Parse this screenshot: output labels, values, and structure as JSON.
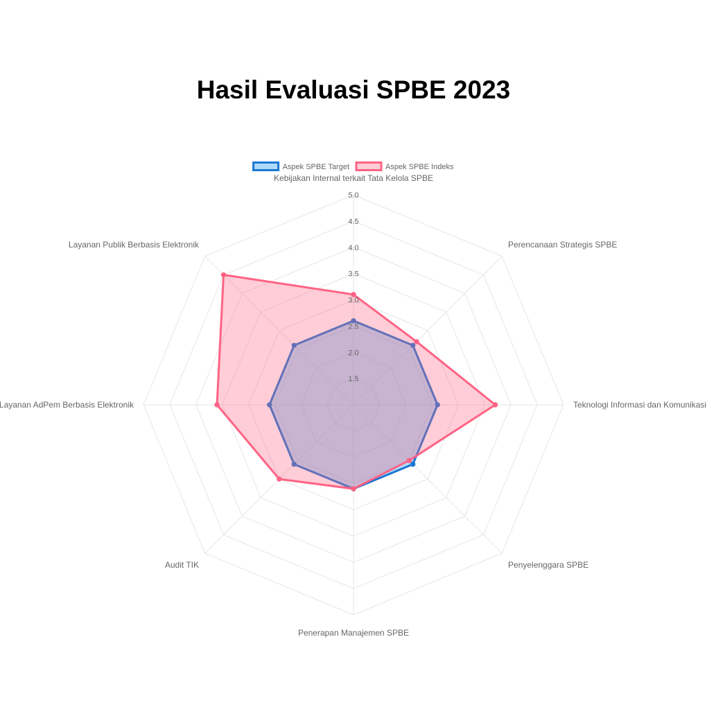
{
  "title": "Hasil Evaluasi SPBE 2023",
  "chart_data": {
    "type": "radar",
    "title": "Hasil Evaluasi SPBE 2023",
    "axes": [
      "Kebijakan Internal terkait Tata Kelola SPBE",
      "Perencanaan Strategis SPBE",
      "Teknologi Informasi dan Komunikasi",
      "Penyelenggara SPBE",
      "Penerapan Manajemen SPBE",
      "Audit TIK",
      "Layanan AdPem Berbasis Elektronik",
      "Layanan Publik Berbasis Elektronik"
    ],
    "r_range": [
      1,
      5
    ],
    "ticks": [
      "1.5",
      "2.0",
      "2.5",
      "3.0",
      "3.5",
      "4.0",
      "4.5",
      "5.0"
    ],
    "tick_values": [
      1.5,
      2.0,
      2.5,
      3.0,
      3.5,
      4.0,
      4.5,
      5.0
    ],
    "grid": true,
    "legend_position": "top",
    "series": [
      {
        "name": "Aspek SPBE Target",
        "values": [
          2.6,
          2.6,
          2.6,
          2.6,
          2.6,
          2.6,
          2.6,
          2.6
        ],
        "color": "#1976d2",
        "fill": "rgba(54, 162, 235, 0.4)"
      },
      {
        "name": "Aspek SPBE Indeks",
        "values": [
          3.1,
          2.7,
          3.7,
          2.5,
          2.6,
          3.0,
          3.6,
          4.5
        ],
        "color": "#ff6384",
        "fill": "rgba(255, 99, 132, 0.32)"
      }
    ]
  }
}
